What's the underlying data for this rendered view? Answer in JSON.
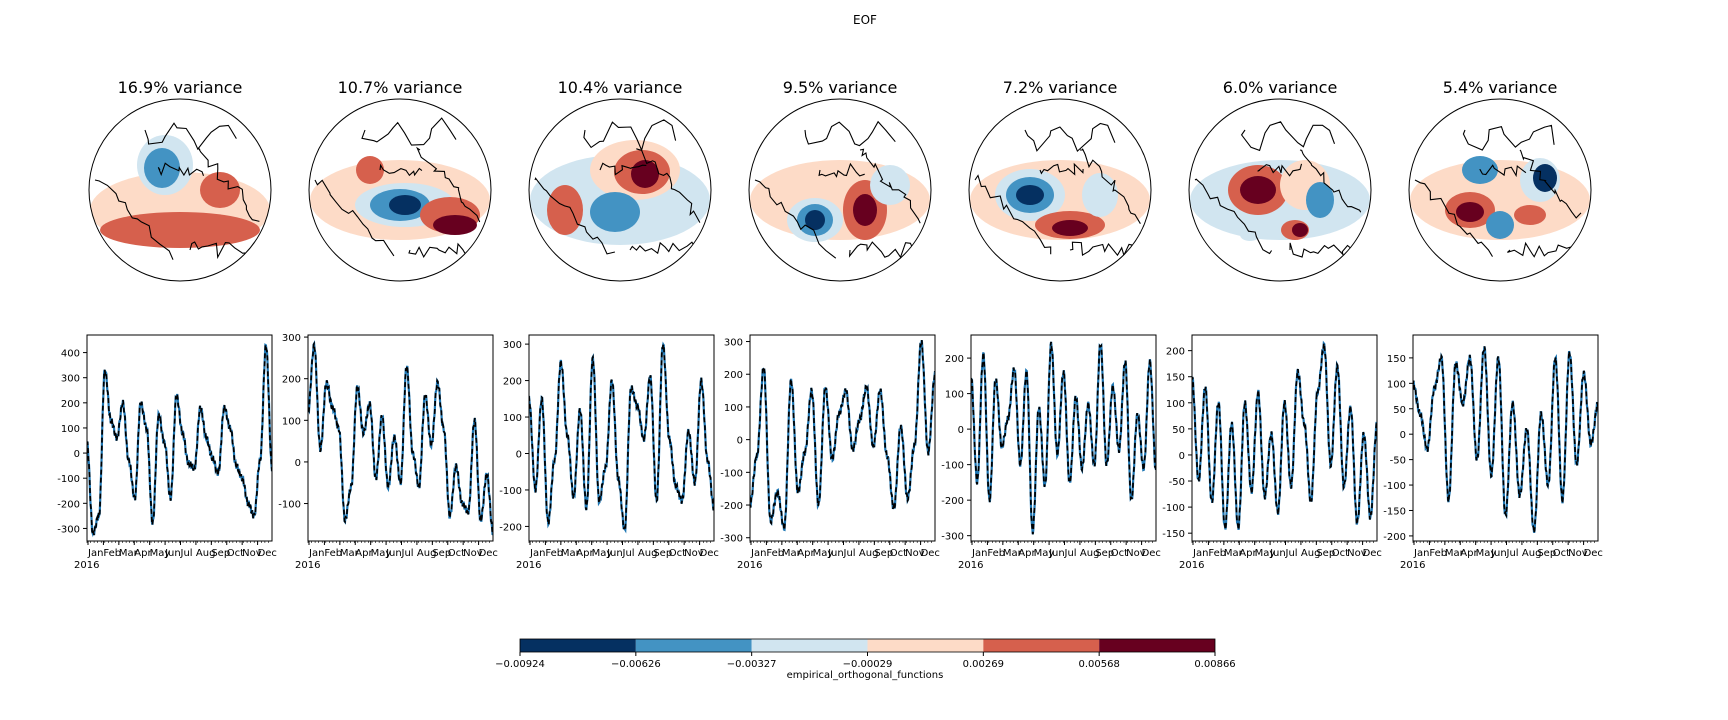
{
  "figure_title": "EOF",
  "colors": {
    "levels": [
      "#053061",
      "#4393c3",
      "#d1e5f0",
      "#fddbc7",
      "#d6604d",
      "#67001f"
    ],
    "line": "#1f77b4",
    "dashed": "#000000"
  },
  "colorbar": {
    "label": "empirical_orthogonal_functions",
    "ticks": [
      "−0.00924",
      "−0.00626",
      "−0.00327",
      "−0.00029",
      "0.00269",
      "0.00568",
      "0.00866"
    ]
  },
  "chart_data": [
    {
      "type": "map",
      "title": "16.9% variance"
    },
    {
      "type": "map",
      "title": "10.7% variance"
    },
    {
      "type": "map",
      "title": "10.4% variance"
    },
    {
      "type": "map",
      "title": "9.5% variance"
    },
    {
      "type": "map",
      "title": "7.2% variance"
    },
    {
      "type": "map",
      "title": "6.0% variance"
    },
    {
      "type": "map",
      "title": "5.4% variance"
    },
    {
      "type": "line",
      "months": [
        "Jan",
        "Feb",
        "Mar",
        "Apr",
        "May",
        "Jun",
        "Jul",
        "Aug",
        "Sep",
        "Oct",
        "Nov",
        "Dec"
      ],
      "year": "2016",
      "yticks": [
        -300,
        -200,
        -100,
        0,
        100,
        200,
        300,
        400
      ],
      "ylim": [
        -350,
        470
      ],
      "anchors": [
        40,
        -320,
        -250,
        330,
        130,
        60,
        200,
        -30,
        -180,
        200,
        100,
        -280,
        150,
        40,
        -180,
        230,
        80,
        -40,
        -60,
        180,
        60,
        -20,
        -80,
        180,
        100,
        -50,
        -100,
        -200,
        -250,
        -30,
        430,
        -60
      ]
    },
    {
      "type": "line",
      "months": [
        "Jan",
        "Feb",
        "Mar",
        "Apr",
        "May",
        "Jun",
        "Jul",
        "Aug",
        "Sep",
        "Oct",
        "Nov",
        "Dec"
      ],
      "year": "2016",
      "yticks": [
        -100,
        0,
        100,
        200,
        300
      ],
      "ylim": [
        -190,
        305
      ],
      "anchors": [
        120,
        280,
        30,
        190,
        130,
        80,
        -140,
        -60,
        180,
        70,
        140,
        -40,
        110,
        -60,
        60,
        -50,
        230,
        20,
        -60,
        160,
        40,
        190,
        80,
        -130,
        -10,
        -100,
        -120,
        100,
        -140,
        -30,
        -170
      ]
    },
    {
      "type": "line",
      "months": [
        "Jan",
        "Feb",
        "Mar",
        "Apr",
        "May",
        "Jun",
        "Jul",
        "Aug",
        "Sep",
        "Oct",
        "Nov",
        "Dec"
      ],
      "year": "2016",
      "yticks": [
        -200,
        -100,
        0,
        100,
        200,
        300
      ],
      "ylim": [
        -240,
        325
      ],
      "anchors": [
        150,
        -100,
        150,
        -190,
        -20,
        250,
        50,
        -120,
        120,
        -150,
        260,
        -130,
        -40,
        200,
        -70,
        -210,
        180,
        130,
        40,
        210,
        -130,
        300,
        40,
        -90,
        -130,
        60,
        -80,
        200,
        -20,
        -150
      ]
    },
    {
      "type": "line",
      "months": [
        "Jan",
        "Feb",
        "Mar",
        "Apr",
        "May",
        "Jun",
        "Jul",
        "Aug",
        "Sep",
        "Oct",
        "Nov",
        "Dec"
      ],
      "year": "2016",
      "yticks": [
        -300,
        -200,
        -100,
        0,
        100,
        200,
        300
      ],
      "ylim": [
        -310,
        320
      ],
      "anchors": [
        -200,
        -50,
        220,
        -250,
        -160,
        -270,
        180,
        -160,
        -40,
        150,
        -200,
        160,
        -60,
        80,
        150,
        -30,
        60,
        160,
        -20,
        150,
        -50,
        -210,
        40,
        -180,
        -20,
        300,
        -40,
        200
      ]
    },
    {
      "type": "line",
      "months": [
        "Jan",
        "Feb",
        "Mar",
        "Apr",
        "May",
        "Jun",
        "Jul",
        "Aug",
        "Sep",
        "Oct",
        "Nov",
        "Dec"
      ],
      "year": "2016",
      "yticks": [
        -300,
        -200,
        -100,
        0,
        100,
        200
      ],
      "ylim": [
        -315,
        265
      ],
      "anchors": [
        150,
        -150,
        210,
        -200,
        140,
        -50,
        30,
        170,
        -100,
        160,
        -290,
        60,
        -160,
        240,
        -70,
        160,
        -150,
        90,
        -110,
        70,
        -100,
        240,
        -100,
        120,
        -60,
        190,
        -200,
        40,
        -110,
        190,
        -120
      ]
    },
    {
      "type": "line",
      "months": [
        "Jan",
        "Feb",
        "Mar",
        "Apr",
        "May",
        "Jun",
        "Jul",
        "Aug",
        "Sep",
        "Oct",
        "Nov",
        "Dec"
      ],
      "year": "2016",
      "yticks": [
        -150,
        -100,
        -50,
        0,
        50,
        100,
        150,
        200
      ],
      "ylim": [
        -165,
        230
      ],
      "anchors": [
        150,
        -50,
        130,
        -90,
        100,
        -140,
        60,
        -140,
        100,
        -70,
        120,
        -80,
        40,
        -110,
        100,
        -60,
        160,
        60,
        -90,
        120,
        210,
        -20,
        170,
        -60,
        90,
        -130,
        40,
        -120,
        60
      ]
    },
    {
      "type": "line",
      "months": [
        "Jan",
        "Feb",
        "Mar",
        "Apr",
        "May",
        "Jun",
        "Jul",
        "Aug",
        "Sep",
        "Oct",
        "Nov",
        "Dec"
      ],
      "year": "2016",
      "yticks": [
        -200,
        -150,
        -100,
        -50,
        0,
        50,
        100,
        150
      ],
      "ylim": [
        -210,
        195
      ],
      "anchors": [
        100,
        40,
        -30,
        90,
        150,
        -130,
        140,
        60,
        150,
        -50,
        170,
        -80,
        150,
        -160,
        60,
        -120,
        10,
        -190,
        40,
        -100,
        150,
        -130,
        160,
        -60,
        120,
        -20,
        60
      ]
    }
  ]
}
